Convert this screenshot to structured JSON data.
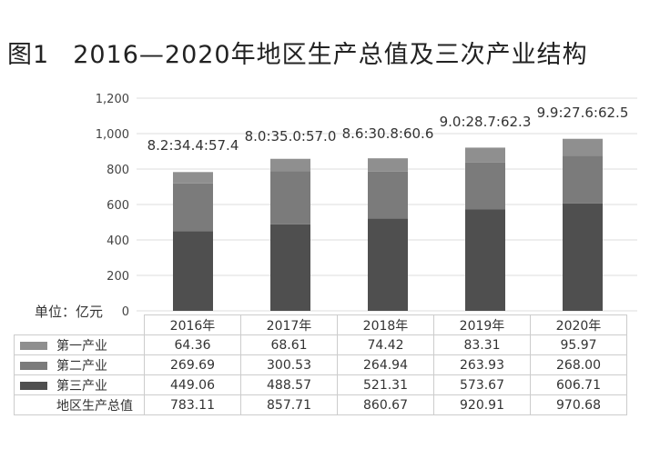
{
  "title": {
    "figure_no": "图1",
    "text": "2016—2020年地区生产总值及三次产业结构"
  },
  "unit_label": "单位：亿元",
  "chart_data": {
    "type": "bar",
    "stacked": true,
    "categories": [
      "2016年",
      "2017年",
      "2018年",
      "2019年",
      "2020年"
    ],
    "series": [
      {
        "name": "第三产业",
        "values": [
          449.06,
          488.57,
          521.31,
          573.67,
          606.71
        ],
        "color": "#4f4f4f"
      },
      {
        "name": "第二产业",
        "values": [
          269.69,
          300.53,
          264.94,
          263.93,
          268.0
        ],
        "color": "#7b7b7b"
      },
      {
        "name": "第一产业",
        "values": [
          64.36,
          68.61,
          74.42,
          83.31,
          95.97
        ],
        "color": "#8f8f8f"
      }
    ],
    "totals": {
      "name": "地区生产总值",
      "values": [
        "783.11",
        "857.71",
        "860.67",
        "920.91",
        "970.68"
      ]
    },
    "annotations": [
      "8.2:34.4:57.4",
      "8.0:35.0:57.0",
      "8.6:30.8:60.6",
      "9.0:28.7:62.3",
      "9.9:27.6:62.5"
    ],
    "yticks": [
      "0",
      "200",
      "400",
      "600",
      "800",
      "1,000",
      "1,200"
    ],
    "ylim": [
      0,
      1200
    ],
    "grid": true,
    "legend": "data-table"
  },
  "table": {
    "rows": [
      {
        "label": "第一产业",
        "color": "#8f8f8f",
        "values": [
          "64.36",
          "68.61",
          "74.42",
          "83.31",
          "95.97"
        ]
      },
      {
        "label": "第二产业",
        "color": "#7b7b7b",
        "values": [
          "269.69",
          "300.53",
          "264.94",
          "263.93",
          "268.00"
        ]
      },
      {
        "label": "第三产业",
        "color": "#4f4f4f",
        "values": [
          "449.06",
          "488.57",
          "521.31",
          "573.67",
          "606.71"
        ]
      },
      {
        "label": "地区生产总值",
        "color": "",
        "values": [
          "783.11",
          "857.71",
          "860.67",
          "920.91",
          "970.68"
        ]
      }
    ]
  }
}
